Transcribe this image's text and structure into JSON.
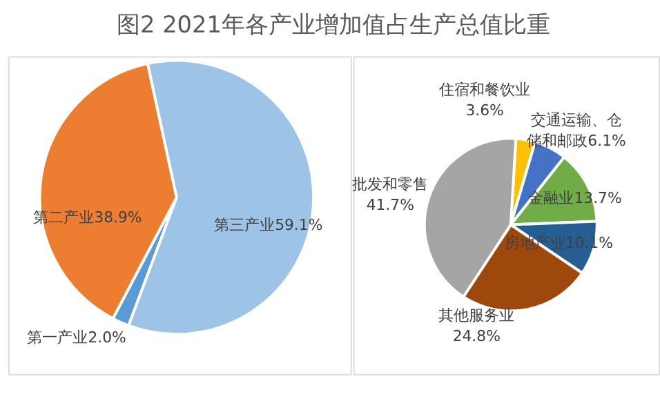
{
  "chart_data": [
    {
      "type": "pie",
      "title": "图2  2021年各产业增加值占生产总值比重",
      "categories": [
        "第一产业",
        "第二产业",
        "第三产业"
      ],
      "values": [
        2.0,
        38.9,
        59.1
      ],
      "colors": [
        "#5b9bd5",
        "#ed7d31",
        "#9dc3e6"
      ],
      "value_labels": [
        "2.0%",
        "38.9%",
        "59.1%"
      ]
    },
    {
      "type": "pie",
      "categories": [
        "住宿和餐饮业",
        "交通运输、仓储和邮政",
        "金融业",
        "房地产业",
        "其他服务业",
        "批发和零售"
      ],
      "values": [
        3.6,
        6.1,
        13.7,
        10.1,
        24.8,
        41.7
      ],
      "colors": [
        "#ffc000",
        "#4472c4",
        "#70ad47",
        "#255e91",
        "#9e480e",
        "#a5a5a5"
      ],
      "value_labels": [
        "3.6%",
        "6.1%",
        "13.7%",
        "10.1%",
        "24.8%",
        "41.7%"
      ]
    }
  ]
}
